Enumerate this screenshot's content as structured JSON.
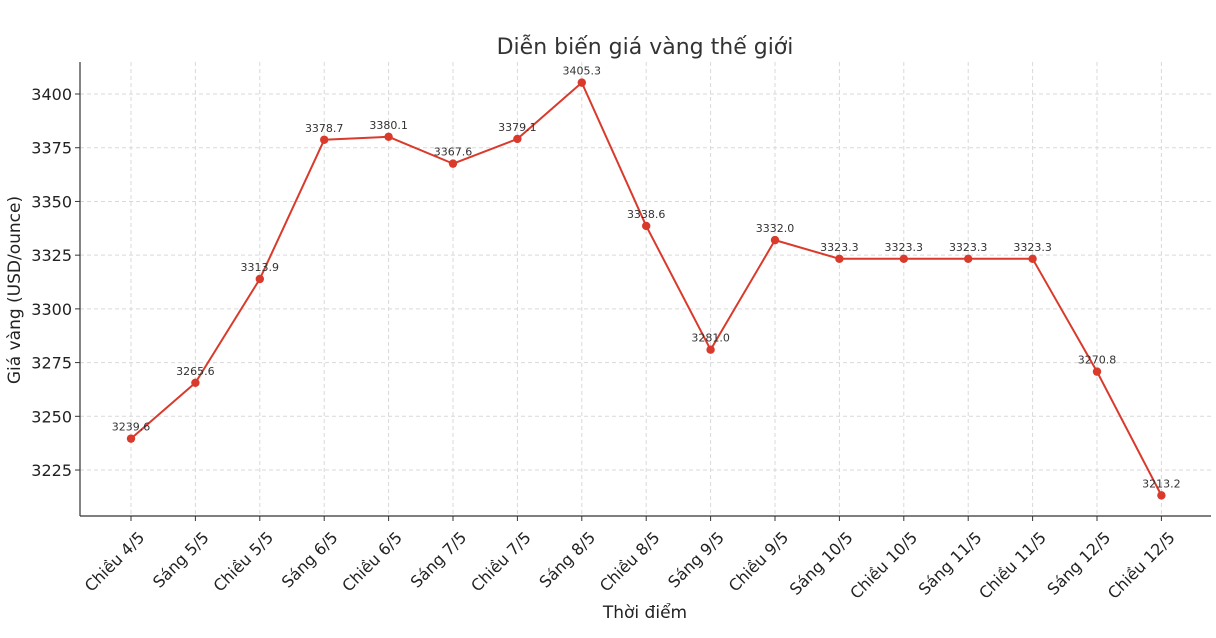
{
  "chart_data": {
    "type": "line",
    "title": "Diễn biến giá vàng thế giới",
    "xlabel": "Thời điểm",
    "ylabel": "Giá vàng (USD/ounce)",
    "categories": [
      "Chiều 4/5",
      "Sáng 5/5",
      "Chiều 5/5",
      "Sáng 6/5",
      "Chiều 6/5",
      "Sáng 7/5",
      "Chiều 7/5",
      "Sáng 8/5",
      "Chiều 8/5",
      "Sáng 9/5",
      "Chiều 9/5",
      "Sáng 10/5",
      "Chiều 10/5",
      "Sáng 11/5",
      "Chiều 11/5",
      "Sáng 12/5",
      "Chiều 12/5"
    ],
    "values": [
      3239.6,
      3265.6,
      3313.9,
      3378.7,
      3380.1,
      3367.6,
      3379.1,
      3405.3,
      3338.6,
      3281.0,
      3332.0,
      3323.3,
      3323.3,
      3323.3,
      3323.3,
      3270.8,
      3213.2
    ],
    "data_labels": [
      "3239.6",
      "3265.6",
      "3313.9",
      "3378.7",
      "3380.1",
      "3367.6",
      "3379.1",
      "3405.3",
      "3338.6",
      "3281.0",
      "3332.0",
      "3323.3",
      "3323.3",
      "3323.3",
      "3323.3",
      "3270.8",
      "3213.2"
    ],
    "yticks": [
      3225,
      3250,
      3275,
      3300,
      3325,
      3350,
      3375,
      3400
    ],
    "ylim": [
      3203.6,
      3414.9
    ],
    "grid": true,
    "color": "#d93a2b"
  }
}
